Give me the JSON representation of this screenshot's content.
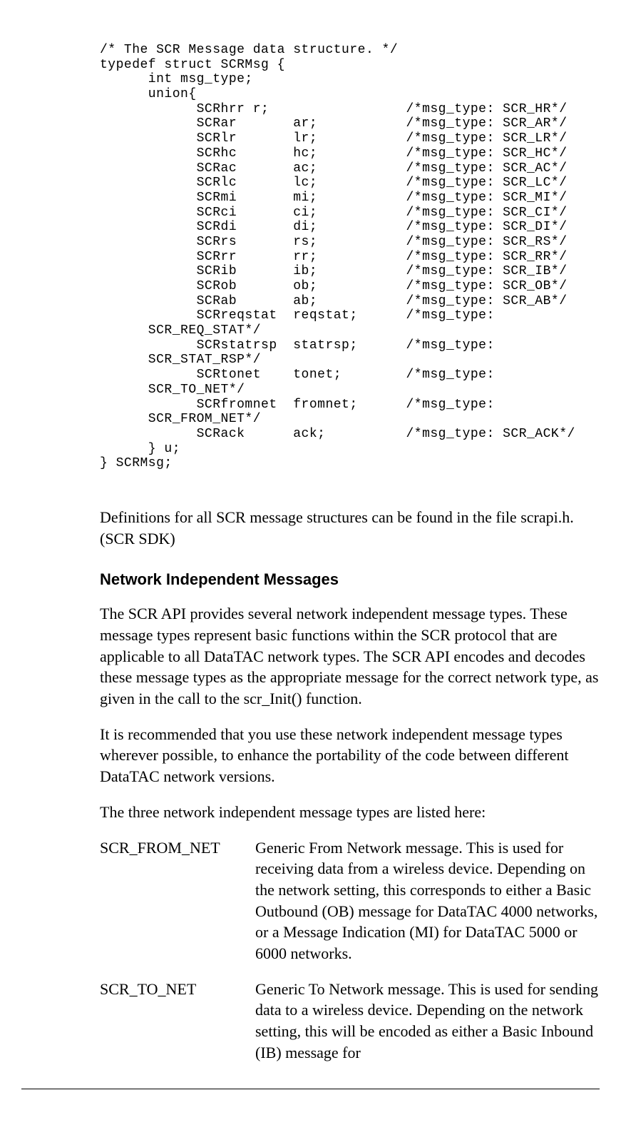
{
  "code": "/* The SCR Message data structure. */\ntypedef struct SCRMsg {\n      int msg_type;\n      union{\n            SCRhrr r;                 /*msg_type: SCR_HR*/\n            SCRar       ar;           /*msg_type: SCR_AR*/\n            SCRlr       lr;           /*msg_type: SCR_LR*/\n            SCRhc       hc;           /*msg_type: SCR_HC*/\n            SCRac       ac;           /*msg_type: SCR_AC*/\n            SCRlc       lc;           /*msg_type: SCR_LC*/\n            SCRmi       mi;           /*msg_type: SCR_MI*/\n            SCRci       ci;           /*msg_type: SCR_CI*/\n            SCRdi       di;           /*msg_type: SCR_DI*/\n            SCRrs       rs;           /*msg_type: SCR_RS*/\n            SCRrr       rr;           /*msg_type: SCR_RR*/\n            SCRib       ib;           /*msg_type: SCR_IB*/\n            SCRob       ob;           /*msg_type: SCR_OB*/\n            SCRab       ab;           /*msg_type: SCR_AB*/\n            SCRreqstat  reqstat;      /*msg_type:\n      SCR_REQ_STAT*/\n            SCRstatrsp  statrsp;      /*msg_type:\n      SCR_STAT_RSP*/\n            SCRtonet    tonet;        /*msg_type:\n      SCR_TO_NET*/\n            SCRfromnet  fromnet;      /*msg_type:\n      SCR_FROM_NET*/\n            SCRack      ack;          /*msg_type: SCR_ACK*/\n      } u;\n} SCRMsg;",
  "para1": "Definitions for all SCR message structures can be found in the file scrapi.h. (SCR SDK)",
  "heading1": "Network Independent Messages",
  "para2": "The SCR API provides several network independent message types. These message types represent basic functions within the SCR protocol that are applicable to all DataTAC network types. The SCR API encodes and decodes these message types as the appropriate message for the correct network type, as given in the call to the scr_Init() function.",
  "para3": "It is recommended that you use these network independent message types wherever possible, to enhance the portability of the code between different DataTAC network versions.",
  "para4": "The three network independent message types are listed here:",
  "defs": [
    {
      "term": "SCR_FROM_NET",
      "desc": "Generic From Network message. This is used for receiving data from a wireless device. Depending on the network setting, this corresponds to either a Basic Outbound (OB) message for DataTAC 4000 networks, or a Message Indication (MI) for DataTAC 5000 or 6000 networks."
    },
    {
      "term": "SCR_TO_NET",
      "desc": "Generic To Network message. This is used for sending data to a wireless device. Depending on the network setting, this will be encoded as either a Basic Inbound (IB) message for"
    }
  ]
}
